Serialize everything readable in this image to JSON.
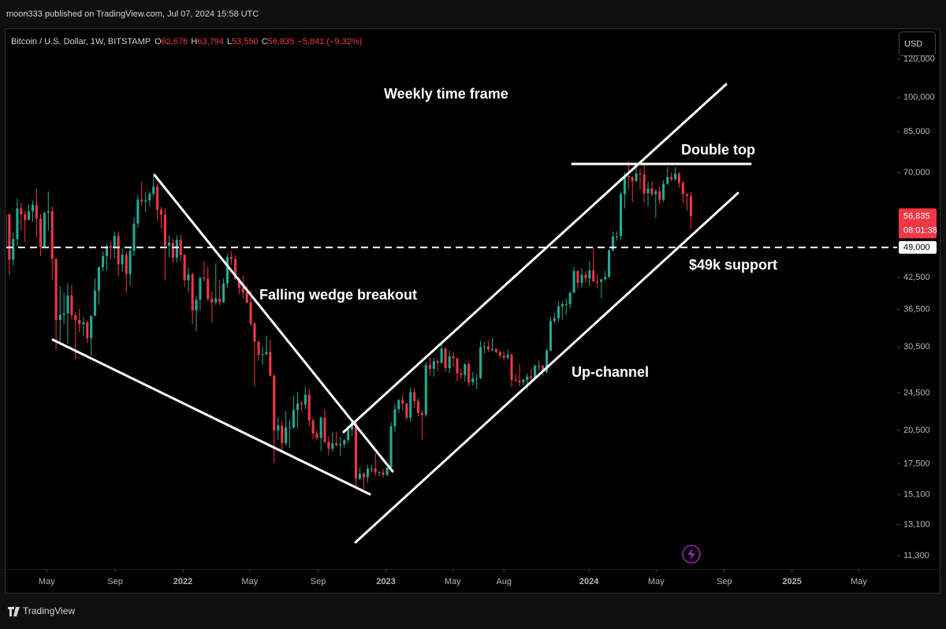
{
  "top": {
    "publisher": "moon333 published on TradingView.com, Jul 07, 2024 15:58 UTC"
  },
  "footer": {
    "brand": "TradingView"
  },
  "chart_data": {
    "type": "candlestick",
    "header": {
      "symbol": "Bitcoin / U.S. Dollar, 1W, BITSTAMP",
      "fields": [
        {
          "key": "O",
          "value": "62,676"
        },
        {
          "key": "H",
          "value": "63,794"
        },
        {
          "key": "L",
          "value": "53,550"
        },
        {
          "key": "C",
          "value": "56,835"
        }
      ],
      "change": "−5,841 (−9.32%)"
    },
    "currency": "USD",
    "annotations": [
      "Weekly time frame",
      "Double top",
      "Falling wedge breakout",
      "$49k support",
      "Up-channel"
    ],
    "yscale": "log",
    "grid": false,
    "up_color": "#22ab94",
    "down_color": "#f23645",
    "xlim": [
      2021.13,
      2025.518
    ],
    "ylim": [
      10600,
      139000
    ],
    "xticks": [
      {
        "value": 2021.329,
        "label": "May"
      },
      {
        "value": 2021.666,
        "label": "Sep"
      },
      2022,
      {
        "value": 2022.329,
        "label": "May"
      },
      {
        "value": 2022.666,
        "label": "Sep"
      },
      2023,
      {
        "value": 2023.329,
        "label": "May"
      },
      {
        "value": 2023.581,
        "label": "Aug"
      },
      2024,
      {
        "value": 2024.331,
        "label": "May"
      },
      {
        "value": 2024.667,
        "label": "Sep"
      },
      2025,
      {
        "value": 2025.329,
        "label": "May"
      }
    ],
    "yticks": [
      {
        "value": 120000,
        "label": "120,000"
      },
      {
        "value": 100000,
        "label": "100,000"
      },
      {
        "value": 85000,
        "label": "85,000"
      },
      {
        "value": 70000,
        "label": "70,000"
      },
      {
        "value": 42500,
        "label": "42,500"
      },
      {
        "value": 36500,
        "label": "36,500"
      },
      {
        "value": 30500,
        "label": "30,500"
      },
      {
        "value": 24500,
        "label": "24,500"
      },
      {
        "value": 20500,
        "label": "20,500"
      },
      {
        "value": 17500,
        "label": "17,500"
      },
      {
        "value": 15100,
        "label": "15,100"
      },
      {
        "value": 13100,
        "label": "13,100"
      },
      {
        "value": 11300,
        "label": "11,300"
      }
    ],
    "hline": {
      "value": 49000,
      "label": "49,000"
    },
    "price_label": {
      "value": 56835,
      "label": "56,835",
      "countdown": "08:01:38"
    },
    "candles": [
      [
        2021.126,
        48600,
        58300,
        47000,
        57400
      ],
      [
        2021.145,
        57400,
        57500,
        43000,
        46200
      ],
      [
        2021.164,
        46200,
        52600,
        45000,
        51000
      ],
      [
        2021.184,
        51000,
        61800,
        49300,
        59000
      ],
      [
        2021.203,
        59000,
        60600,
        53200,
        57300
      ],
      [
        2021.222,
        57300,
        58400,
        50400,
        55800
      ],
      [
        2021.241,
        55800,
        60200,
        56000,
        58200
      ],
      [
        2021.26,
        58200,
        61200,
        55400,
        60000
      ],
      [
        2021.279,
        60000,
        64800,
        51500,
        56200
      ],
      [
        2021.299,
        56200,
        57400,
        47000,
        49100
      ],
      [
        2021.318,
        49100,
        58000,
        48800,
        57800
      ],
      [
        2021.337,
        57800,
        64000,
        53000,
        58200
      ],
      [
        2021.356,
        58200,
        59600,
        42000,
        46400
      ],
      [
        2021.375,
        46400,
        46600,
        30000,
        34700
      ],
      [
        2021.395,
        34700,
        40800,
        31200,
        35600
      ],
      [
        2021.414,
        35600,
        39500,
        34000,
        35800
      ],
      [
        2021.433,
        35800,
        41300,
        31000,
        39000
      ],
      [
        2021.452,
        39000,
        41000,
        34800,
        35500
      ],
      [
        2021.471,
        35500,
        36000,
        28800,
        34700
      ],
      [
        2021.49,
        34700,
        36600,
        32700,
        34000
      ],
      [
        2021.51,
        34000,
        35100,
        32100,
        34300
      ],
      [
        2021.529,
        34300,
        34500,
        31100,
        31800
      ],
      [
        2021.548,
        31800,
        35400,
        29300,
        35400
      ],
      [
        2021.567,
        35400,
        42300,
        35400,
        39900
      ],
      [
        2021.586,
        39900,
        44700,
        37300,
        44600
      ],
      [
        2021.606,
        44600,
        48100,
        43800,
        47000
      ],
      [
        2021.625,
        47000,
        49900,
        43900,
        49300
      ],
      [
        2021.644,
        49300,
        50500,
        46400,
        48900
      ],
      [
        2021.663,
        48900,
        52900,
        46500,
        51800
      ],
      [
        2021.682,
        51800,
        52900,
        42800,
        45200
      ],
      [
        2021.701,
        45200,
        48800,
        43600,
        47300
      ],
      [
        2021.721,
        47300,
        48000,
        39600,
        43200
      ],
      [
        2021.74,
        43200,
        49200,
        40800,
        48200
      ],
      [
        2021.759,
        48200,
        56500,
        47100,
        54900
      ],
      [
        2021.778,
        54900,
        62900,
        53900,
        61500
      ],
      [
        2021.797,
        61500,
        67000,
        59800,
        61000
      ],
      [
        2021.816,
        61000,
        63700,
        58000,
        61300
      ],
      [
        2021.836,
        61300,
        64000,
        59500,
        63300
      ],
      [
        2021.855,
        63300,
        69000,
        62400,
        65500
      ],
      [
        2021.874,
        65500,
        66300,
        55600,
        58600
      ],
      [
        2021.893,
        58600,
        59400,
        53600,
        57300
      ],
      [
        2021.912,
        57300,
        59000,
        42000,
        49400
      ],
      [
        2021.932,
        49400,
        51900,
        46800,
        50100
      ],
      [
        2021.951,
        50100,
        51000,
        45500,
        46700
      ],
      [
        2021.97,
        46700,
        51900,
        45600,
        50800
      ],
      [
        2021.989,
        50800,
        52100,
        45700,
        47300
      ],
      [
        2022.008,
        47300,
        47500,
        40500,
        41900
      ],
      [
        2022.027,
        41900,
        44400,
        39600,
        43100
      ],
      [
        2022.047,
        43100,
        43500,
        34000,
        36300
      ],
      [
        2022.066,
        36300,
        38900,
        32900,
        38200
      ],
      [
        2022.085,
        38200,
        42600,
        36300,
        42400
      ],
      [
        2022.104,
        42400,
        45800,
        41700,
        42200
      ],
      [
        2022.123,
        42200,
        44700,
        37900,
        38400
      ],
      [
        2022.143,
        38400,
        39800,
        34300,
        37700
      ],
      [
        2022.162,
        37700,
        45400,
        37300,
        38400
      ],
      [
        2022.181,
        38400,
        42000,
        37200,
        37800
      ],
      [
        2022.2,
        37800,
        42300,
        37600,
        41300
      ],
      [
        2022.219,
        41300,
        47500,
        40500,
        46800
      ],
      [
        2022.238,
        46800,
        48200,
        45100,
        46400
      ],
      [
        2022.258,
        46400,
        47200,
        41900,
        42200
      ],
      [
        2022.277,
        42200,
        42400,
        39200,
        40400
      ],
      [
        2022.296,
        40400,
        42900,
        38500,
        39500
      ],
      [
        2022.315,
        39500,
        40800,
        37600,
        37700
      ],
      [
        2022.334,
        37700,
        40000,
        33700,
        34100
      ],
      [
        2022.353,
        34100,
        34400,
        25300,
        31300
      ],
      [
        2022.373,
        31300,
        31400,
        28600,
        29400
      ],
      [
        2022.392,
        29400,
        30600,
        28000,
        29500
      ],
      [
        2022.411,
        29500,
        32200,
        29300,
        29800
      ],
      [
        2022.43,
        29800,
        31600,
        26500,
        26600
      ],
      [
        2022.449,
        26600,
        26800,
        17600,
        20500
      ],
      [
        2022.469,
        20500,
        21800,
        19600,
        21000
      ],
      [
        2022.488,
        21000,
        21500,
        18600,
        19300
      ],
      [
        2022.507,
        19300,
        22500,
        19100,
        20800
      ],
      [
        2022.526,
        20800,
        21600,
        18900,
        20800
      ],
      [
        2022.545,
        20800,
        24200,
        20700,
        22600
      ],
      [
        2022.565,
        22600,
        24600,
        20700,
        23300
      ],
      [
        2022.584,
        23300,
        23600,
        22400,
        23200
      ],
      [
        2022.603,
        23200,
        25200,
        22700,
        24300
      ],
      [
        2022.622,
        24300,
        25000,
        20900,
        21500
      ],
      [
        2022.641,
        21500,
        21800,
        19700,
        20200
      ],
      [
        2022.66,
        20200,
        20500,
        19600,
        19800
      ],
      [
        2022.68,
        19800,
        21900,
        18600,
        21800
      ],
      [
        2022.699,
        21800,
        22700,
        19300,
        19400
      ],
      [
        2022.718,
        19400,
        19900,
        18200,
        18800
      ],
      [
        2022.737,
        18800,
        20400,
        18500,
        19300
      ],
      [
        2022.756,
        19300,
        20400,
        19000,
        19100
      ],
      [
        2022.775,
        19100,
        19900,
        18200,
        19200
      ],
      [
        2022.795,
        19200,
        19700,
        18900,
        19600
      ],
      [
        2022.814,
        19600,
        21000,
        19300,
        20600
      ],
      [
        2022.833,
        20600,
        21500,
        20000,
        21300
      ],
      [
        2022.852,
        21300,
        21400,
        15600,
        16300
      ],
      [
        2022.871,
        16300,
        17200,
        16200,
        16700
      ],
      [
        2022.891,
        16700,
        16800,
        15500,
        16400
      ],
      [
        2022.91,
        16400,
        17400,
        16000,
        17100
      ],
      [
        2022.929,
        17100,
        17400,
        16800,
        17100
      ],
      [
        2022.948,
        17100,
        18400,
        16500,
        16800
      ],
      [
        2022.967,
        16800,
        16900,
        16500,
        16800
      ],
      [
        2022.986,
        16800,
        17100,
        16400,
        16600
      ],
      [
        2023.006,
        16600,
        17200,
        16500,
        17200
      ],
      [
        2023.025,
        17200,
        21300,
        17100,
        20900
      ],
      [
        2023.044,
        20900,
        23300,
        20400,
        22700
      ],
      [
        2023.063,
        22700,
        23800,
        22300,
        23700
      ],
      [
        2023.082,
        23700,
        24300,
        22500,
        23300
      ],
      [
        2023.102,
        23300,
        23400,
        21500,
        21800
      ],
      [
        2023.121,
        21800,
        25200,
        21400,
        24600
      ],
      [
        2023.14,
        24600,
        25100,
        22800,
        23600
      ],
      [
        2023.159,
        23600,
        23900,
        21900,
        22300
      ],
      [
        2023.178,
        22300,
        22600,
        19600,
        22100
      ],
      [
        2023.197,
        22100,
        28400,
        21900,
        28000
      ],
      [
        2023.217,
        28000,
        29000,
        26600,
        27500
      ],
      [
        2023.236,
        27500,
        29000,
        26500,
        28500
      ],
      [
        2023.255,
        28500,
        28800,
        27200,
        28300
      ],
      [
        2023.274,
        28300,
        31000,
        28200,
        30300
      ],
      [
        2023.293,
        30300,
        30500,
        27100,
        27600
      ],
      [
        2023.313,
        27600,
        30000,
        26900,
        29200
      ],
      [
        2023.332,
        29200,
        29800,
        27700,
        28900
      ],
      [
        2023.351,
        28900,
        29000,
        25900,
        26900
      ],
      [
        2023.37,
        26900,
        27500,
        26200,
        26700
      ],
      [
        2023.389,
        26700,
        28200,
        25900,
        28100
      ],
      [
        2023.408,
        28100,
        28400,
        25400,
        25800
      ],
      [
        2023.428,
        25800,
        27100,
        25400,
        26300
      ],
      [
        2023.447,
        26300,
        26800,
        24900,
        26300
      ],
      [
        2023.466,
        26300,
        31400,
        26200,
        30500
      ],
      [
        2023.485,
        30500,
        31200,
        29600,
        30600
      ],
      [
        2023.504,
        30600,
        31500,
        29800,
        30200
      ],
      [
        2023.524,
        30200,
        31800,
        29900,
        30200
      ],
      [
        2023.543,
        30200,
        30300,
        29600,
        29800
      ],
      [
        2023.562,
        29800,
        29900,
        28900,
        29300
      ],
      [
        2023.581,
        29300,
        29900,
        28600,
        29000
      ],
      [
        2023.6,
        29000,
        30200,
        28700,
        29400
      ],
      [
        2023.619,
        29400,
        29700,
        25200,
        26100
      ],
      [
        2023.639,
        26100,
        26800,
        25800,
        26000
      ],
      [
        2023.658,
        26000,
        28100,
        25300,
        25800
      ],
      [
        2023.677,
        25800,
        26200,
        25400,
        26100
      ],
      [
        2023.696,
        26100,
        26900,
        24900,
        26500
      ],
      [
        2023.715,
        26500,
        27500,
        26000,
        26300
      ],
      [
        2023.734,
        26300,
        28000,
        26000,
        27900
      ],
      [
        2023.754,
        27900,
        28600,
        27200,
        27900
      ],
      [
        2023.773,
        27900,
        28000,
        26600,
        27100
      ],
      [
        2023.792,
        27100,
        30300,
        26900,
        30000
      ],
      [
        2023.811,
        30000,
        35200,
        29900,
        34500
      ],
      [
        2023.83,
        34500,
        35900,
        34100,
        35000
      ],
      [
        2023.85,
        35000,
        37900,
        34500,
        37000
      ],
      [
        2023.869,
        37000,
        38000,
        34800,
        37400
      ],
      [
        2023.888,
        37400,
        38400,
        35600,
        37400
      ],
      [
        2023.907,
        37400,
        39700,
        36700,
        39500
      ],
      [
        2023.926,
        39500,
        44700,
        39400,
        43800
      ],
      [
        2023.945,
        43800,
        44000,
        40200,
        41400
      ],
      [
        2023.965,
        41400,
        44300,
        40500,
        43000
      ],
      [
        2023.984,
        43000,
        43800,
        41400,
        42300
      ],
      [
        2024.003,
        42300,
        45900,
        40800,
        43900
      ],
      [
        2024.022,
        43900,
        49000,
        41600,
        41700
      ],
      [
        2024.041,
        41700,
        43200,
        40300,
        41600
      ],
      [
        2024.061,
        41600,
        42200,
        38500,
        42100
      ],
      [
        2024.08,
        42100,
        43800,
        41800,
        42600
      ],
      [
        2024.099,
        42600,
        48600,
        42300,
        48300
      ],
      [
        2024.118,
        48300,
        52800,
        48100,
        51600
      ],
      [
        2024.137,
        51600,
        52900,
        50600,
        51700
      ],
      [
        2024.157,
        51700,
        64000,
        50900,
        63100
      ],
      [
        2024.176,
        63100,
        70100,
        59000,
        68900
      ],
      [
        2024.195,
        68900,
        73800,
        64500,
        68400
      ],
      [
        2024.214,
        68400,
        68900,
        60800,
        67200
      ],
      [
        2024.233,
        67200,
        71600,
        66900,
        69700
      ],
      [
        2024.252,
        69700,
        71200,
        64500,
        69400
      ],
      [
        2024.272,
        69400,
        72700,
        60700,
        63400
      ],
      [
        2024.291,
        63400,
        66900,
        59600,
        64900
      ],
      [
        2024.31,
        64900,
        67200,
        62400,
        63100
      ],
      [
        2024.329,
        63100,
        64700,
        56500,
        64000
      ],
      [
        2024.348,
        64000,
        65500,
        60200,
        61500
      ],
      [
        2024.367,
        61500,
        67500,
        60800,
        66300
      ],
      [
        2024.387,
        66300,
        71900,
        66000,
        68500
      ],
      [
        2024.406,
        68500,
        70000,
        67100,
        67800
      ],
      [
        2024.425,
        67800,
        71900,
        67300,
        69600
      ],
      [
        2024.444,
        69600,
        70200,
        65100,
        66700
      ],
      [
        2024.463,
        66700,
        67300,
        60600,
        63200
      ],
      [
        2024.483,
        63200,
        63300,
        58400,
        62676
      ],
      [
        2024.502,
        62676,
        63794,
        53550,
        56835
      ]
    ]
  }
}
